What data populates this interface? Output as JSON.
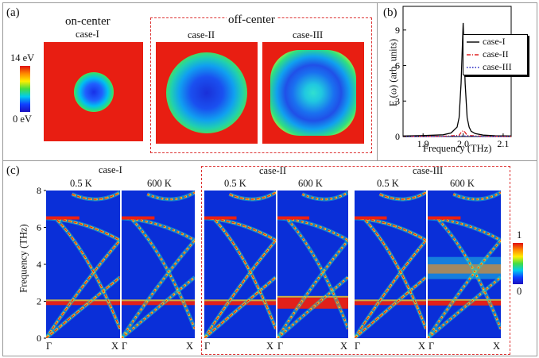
{
  "panel_a": {
    "label": "(a)",
    "on_center": "on-center",
    "off_center": "off-center",
    "cases": [
      "case-I",
      "case-II",
      "case-III"
    ],
    "colorbar_max": "14 eV",
    "colorbar_min": "0 eV",
    "colors": {
      "background": "#e81e12",
      "core": "#1230e0"
    }
  },
  "panel_b": {
    "label": "(b)",
    "xlabel": "Frequency (THz)",
    "ylabel": "E (ω) (arb. units)",
    "legend": [
      "case-I",
      "case-II",
      "case-III"
    ],
    "legend_colors": [
      "#000000",
      "#e02020",
      "#2020c0"
    ]
  },
  "panel_c": {
    "label": "(c)",
    "ylabel": "Frequency (THz)",
    "case_titles": [
      "case-I",
      "case-II",
      "case-III"
    ],
    "temps": [
      "0.5 K",
      "600 K",
      "0.5 K",
      "600 K",
      "0.5 K",
      "600 K"
    ],
    "kx_left": "Γ",
    "kx_right": "X",
    "colorbar_max": "1",
    "colorbar_min": "0"
  },
  "chart_data": [
    {
      "type": "line",
      "xlabel": "Frequency (THz)",
      "ylabel": "E (ω) (arb. units)",
      "xlim": [
        1.85,
        2.12
      ],
      "ylim": [
        0,
        11
      ],
      "xticks": [
        "1.9",
        "2.0",
        "2.1"
      ],
      "yticks": [
        "0",
        "3",
        "6",
        "9"
      ],
      "legend_position": "top-right",
      "series": [
        {
          "name": "case-I",
          "x": [
            1.85,
            1.9,
            1.95,
            1.97,
            1.985,
            1.99,
            1.995,
            2.0,
            2.005,
            2.01,
            2.015,
            2.02,
            2.03,
            2.05,
            2.08,
            2.12
          ],
          "y": [
            0.05,
            0.08,
            0.15,
            0.3,
            0.8,
            1.6,
            4.5,
            9.6,
            4.5,
            1.6,
            0.8,
            0.45,
            0.25,
            0.12,
            0.07,
            0.05
          ]
        },
        {
          "name": "case-II",
          "x": [
            1.85,
            1.95,
            1.99,
            1.995,
            2.0,
            2.005,
            2.01,
            2.05,
            2.12
          ],
          "y": [
            0.0,
            0.02,
            0.1,
            0.35,
            0.5,
            0.35,
            0.1,
            0.02,
            0.0
          ]
        },
        {
          "name": "case-III",
          "x": [
            1.85,
            1.95,
            2.0,
            2.05,
            2.12
          ],
          "y": [
            0.0,
            0.01,
            0.05,
            0.01,
            0.0
          ]
        }
      ]
    },
    {
      "type": "heatmap",
      "xlabel": "",
      "ylabel": "Frequency (THz)",
      "ylim": [
        0,
        8
      ],
      "yticks": [
        "0",
        "2",
        "4",
        "6",
        "8"
      ],
      "colorbar": [
        "0",
        "1"
      ],
      "panels": [
        "case-I 0.5 K",
        "case-I 600 K",
        "case-II 0.5 K",
        "case-II 600 K",
        "case-III 0.5 K",
        "case-III 600 K"
      ]
    }
  ]
}
